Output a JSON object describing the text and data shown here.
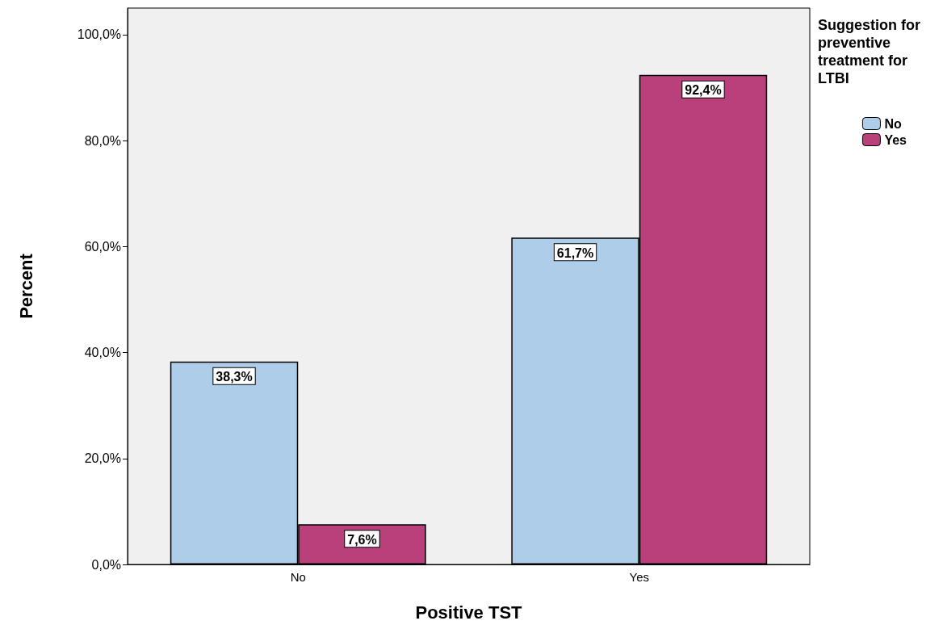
{
  "chart_data": {
    "type": "bar",
    "xlabel": "Positive TST",
    "ylabel": "Percent",
    "legend_title": "Suggestion for preventive treatment for LTBI",
    "categories": [
      "No",
      "Yes"
    ],
    "series": [
      {
        "name": "No",
        "color": "#aecde9",
        "values": [
          38.3,
          61.7
        ],
        "value_labels": [
          "38,3%",
          "61,7%"
        ]
      },
      {
        "name": "Yes",
        "color": "#b9407a",
        "values": [
          7.6,
          92.4
        ],
        "value_labels": [
          "7,6%",
          "92,4%"
        ]
      }
    ],
    "ylim": [
      0,
      105
    ],
    "yticks": [
      {
        "value": 0,
        "label": "0,0%"
      },
      {
        "value": 20,
        "label": "20,0%"
      },
      {
        "value": 40,
        "label": "40,0%"
      },
      {
        "value": 60,
        "label": "60,0%"
      },
      {
        "value": 80,
        "label": "80,0%"
      },
      {
        "value": 100,
        "label": "100,0%"
      }
    ],
    "grid": false,
    "legend": "right"
  }
}
